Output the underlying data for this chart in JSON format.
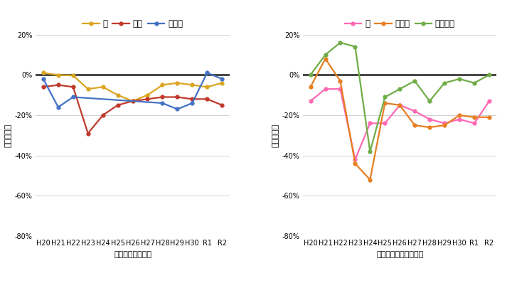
{
  "x_labels": [
    "H20",
    "H21",
    "H22",
    "H23",
    "H24",
    "H25",
    "H26",
    "H27",
    "H28",
    "H29",
    "H30",
    "R1",
    "R2"
  ],
  "chart1": {
    "xlabel": "年度（米は産年）",
    "ylabel": "価格の指数",
    "series": [
      {
        "name": "米",
        "color": "#DAA520",
        "values": [
          0.01,
          -0.001,
          -0.003,
          -0.07,
          -0.06,
          -0.1,
          -0.13,
          -0.1,
          -0.05,
          -0.04,
          -0.05,
          -0.06,
          -0.04
        ]
      },
      {
        "name": "牛肉",
        "color": "#C0392B",
        "values": [
          -0.06,
          -0.05,
          -0.06,
          -0.29,
          -0.2,
          -0.15,
          -0.13,
          -0.12,
          -0.11,
          -0.11,
          -0.12,
          -0.12,
          -0.15
        ]
      },
      {
        "name": "ヒラメ",
        "color": "#4472C4",
        "values": [
          -0.02,
          -0.16,
          -0.11,
          null,
          null,
          null,
          null,
          null,
          -0.14,
          -0.17,
          -0.14,
          0.01,
          -0.02
        ]
      }
    ],
    "ylim": [
      -0.8,
      0.2
    ],
    "yticks": [
      -0.8,
      -0.6,
      -0.4,
      -0.2,
      0.0,
      0.2
    ]
  },
  "chart2": {
    "xlabel": "年度（干し柿は産年）",
    "ylabel": "価格の指数",
    "series": [
      {
        "name": "桃",
        "color": "#FF69B4",
        "values": [
          -0.13,
          -0.07,
          -0.07,
          -0.42,
          -0.24,
          -0.24,
          -0.15,
          -0.18,
          -0.22,
          -0.24,
          -0.22,
          -0.24,
          -0.13
        ]
      },
      {
        "name": "干し柿",
        "color": "#E67E22",
        "values": [
          -0.06,
          0.08,
          -0.03,
          -0.44,
          -0.52,
          -0.14,
          -0.15,
          -0.25,
          -0.26,
          -0.25,
          -0.2,
          -0.21,
          -0.21
        ]
      },
      {
        "name": "ピーマン",
        "color": "#70AD47",
        "values": [
          0.0,
          0.1,
          0.16,
          0.14,
          -0.38,
          -0.11,
          -0.07,
          -0.03,
          -0.13,
          -0.04,
          -0.02,
          -0.04,
          0.0
        ]
      }
    ],
    "ylim": [
      -0.8,
      0.2
    ],
    "yticks": [
      -0.8,
      -0.6,
      -0.4,
      -0.2,
      0.0,
      0.2
    ]
  },
  "background_color": "#FFFFFF",
  "grid_color": "#D0D0D0",
  "zero_line_color": "#222222",
  "marker": "o",
  "markersize": 3.5,
  "linewidth": 1.6,
  "fontsize_tick": 7,
  "fontsize_label": 8,
  "fontsize_legend": 8.5
}
